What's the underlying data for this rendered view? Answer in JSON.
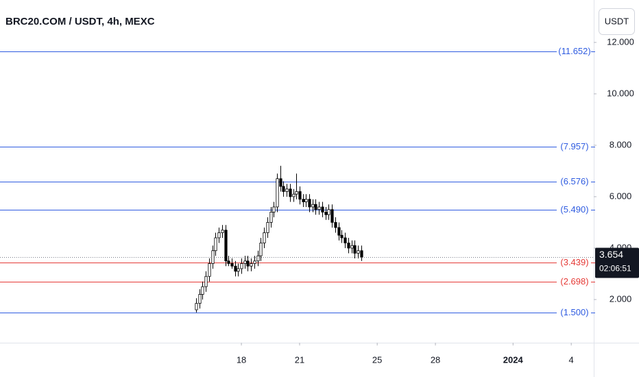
{
  "chart_data": {
    "type": "candlestick",
    "title": "BRC20.COM / USDT, 4h, MEXC",
    "currency_button": "USDT",
    "x": [
      15.67,
      15.83,
      16.0,
      16.17,
      16.33,
      16.5,
      16.67,
      16.83,
      17.0,
      17.17,
      17.33,
      17.5,
      17.67,
      17.83,
      18.0,
      18.17,
      18.33,
      18.5,
      18.67,
      18.83,
      19.0,
      19.17,
      19.33,
      19.5,
      19.67,
      19.83,
      20.0,
      20.17,
      20.33,
      20.5,
      20.67,
      20.83,
      21.0,
      21.17,
      21.33,
      21.5,
      21.67,
      21.83,
      22.0,
      22.17,
      22.33,
      22.5,
      22.67,
      22.83,
      23.0,
      23.17,
      23.33,
      23.5,
      23.67,
      23.83,
      24.0,
      24.17
    ],
    "open": [
      1.6,
      1.85,
      2.2,
      2.5,
      2.9,
      3.4,
      3.9,
      4.4,
      4.6,
      4.7,
      3.5,
      3.4,
      3.3,
      3.1,
      3.2,
      3.4,
      3.5,
      3.3,
      3.4,
      3.5,
      3.7,
      4.2,
      4.6,
      5.0,
      5.4,
      5.6,
      6.7,
      6.4,
      6.2,
      6.3,
      6.0,
      6.1,
      6.2,
      5.9,
      5.8,
      5.9,
      5.6,
      5.7,
      5.5,
      5.6,
      5.4,
      5.3,
      5.5,
      5.0,
      4.8,
      4.5,
      4.4,
      4.2,
      4.0,
      4.1,
      3.8,
      3.9
    ],
    "high": [
      2.05,
      2.4,
      2.7,
      3.1,
      3.6,
      4.1,
      4.6,
      4.8,
      4.9,
      4.9,
      3.7,
      3.6,
      3.5,
      3.4,
      3.6,
      3.7,
      3.7,
      3.6,
      3.7,
      3.9,
      4.4,
      4.8,
      5.2,
      5.6,
      5.8,
      6.9,
      7.2,
      6.6,
      6.5,
      6.5,
      6.3,
      6.9,
      6.4,
      6.1,
      6.1,
      6.1,
      5.9,
      5.9,
      5.8,
      5.8,
      5.6,
      5.7,
      5.7,
      5.2,
      5.0,
      4.7,
      4.6,
      4.4,
      4.3,
      4.3,
      4.1,
      4.1
    ],
    "low": [
      1.5,
      1.65,
      2.0,
      2.3,
      2.7,
      3.2,
      3.7,
      4.2,
      4.4,
      3.3,
      3.3,
      3.2,
      2.9,
      2.9,
      3.0,
      3.2,
      3.1,
      3.1,
      3.2,
      3.3,
      3.5,
      4.0,
      4.4,
      4.8,
      5.2,
      5.4,
      6.2,
      6.0,
      6.0,
      5.8,
      5.8,
      5.9,
      5.7,
      5.6,
      5.6,
      5.4,
      5.4,
      5.3,
      5.3,
      5.2,
      5.1,
      5.1,
      4.8,
      4.6,
      4.3,
      4.2,
      4.0,
      3.8,
      3.8,
      3.6,
      3.6,
      3.5
    ],
    "close": [
      1.85,
      2.2,
      2.5,
      2.9,
      3.4,
      3.9,
      4.4,
      4.6,
      4.7,
      3.5,
      3.4,
      3.3,
      3.1,
      3.2,
      3.4,
      3.5,
      3.3,
      3.4,
      3.5,
      3.7,
      4.2,
      4.6,
      5.0,
      5.4,
      5.6,
      6.7,
      6.4,
      6.2,
      6.3,
      6.0,
      6.1,
      6.2,
      5.9,
      5.8,
      5.9,
      5.6,
      5.7,
      5.5,
      5.6,
      5.4,
      5.3,
      5.5,
      5.0,
      4.8,
      4.5,
      4.4,
      4.2,
      4.0,
      4.1,
      3.8,
      3.9,
      3.654
    ],
    "up_color": "#ffffff",
    "down_color": "#000000",
    "xlim": [
      5.56,
      36.16
    ],
    "xticks": [
      18,
      21,
      25,
      28,
      {
        "value": 32,
        "label": "2024"
      },
      {
        "value": 35,
        "label": "4"
      }
    ],
    "ylim": [
      0.32,
      13.65
    ],
    "yticks": [
      {
        "value": 2,
        "label": "2.000"
      },
      {
        "value": 4,
        "label": "4.000"
      },
      {
        "value": 6,
        "label": "6.000"
      },
      {
        "value": 8,
        "label": "8.000"
      },
      {
        "value": 10,
        "label": "10.000"
      },
      {
        "value": 12,
        "label": "12.000"
      }
    ],
    "levels": {
      "values": [
        11.652,
        7.957,
        6.576,
        5.49,
        3.439,
        2.698,
        1.5
      ],
      "value_labels": [
        "(11.652)",
        "(7.957)",
        "(6.576)",
        "(5.490)",
        "(3.439)",
        "(2.698)",
        "(1.500)"
      ],
      "colors": [
        "#2e5be0",
        "#2e5be0",
        "#2e5be0",
        "#2e5be0",
        "#e53935",
        "#e53935",
        "#2e5be0"
      ]
    },
    "last_price": {
      "value": 3.654,
      "label": "3.654",
      "countdown": "02:06:51"
    }
  }
}
